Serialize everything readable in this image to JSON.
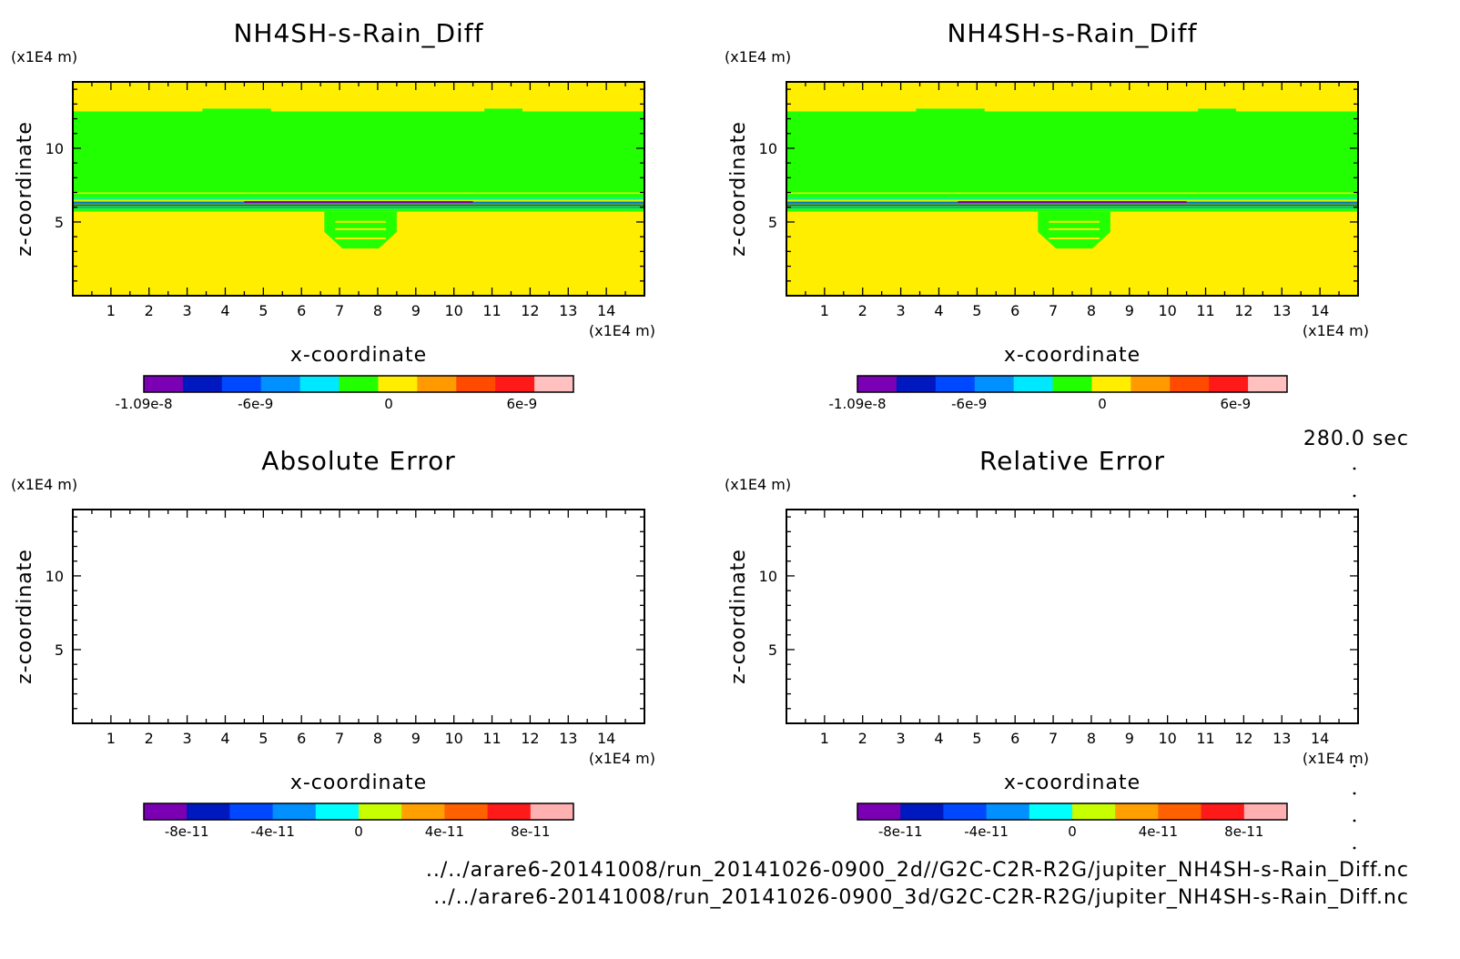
{
  "timestamp": "280.0 sec",
  "file_paths": [
    "../../arare6-20141008/run_20141026-0900_2d//G2C-C2R-R2G/jupiter_NH4SH-s-Rain_Diff.nc",
    "../../arare6-20141008/run_20141026-0900_3d/G2C-C2R-R2G/jupiter_NH4SH-s-Rain_Diff.nc"
  ],
  "colors": {
    "background_field": "#ffee00",
    "cloud_band": "#22ff00",
    "frame": "#000000"
  },
  "chart_data": [
    {
      "type": "heatmap",
      "title": "NH4SH-s-Rain_Diff",
      "xlabel": "x-coordinate",
      "ylabel": "z-coordinate",
      "x_unit": "(x1E4 m)",
      "y_unit": "(x1E4 m)",
      "xlim": [
        0,
        15
      ],
      "ylim": [
        0,
        14.5
      ],
      "x_ticks": [
        1,
        2,
        3,
        4,
        5,
        6,
        7,
        8,
        9,
        10,
        11,
        12,
        13,
        14
      ],
      "y_ticks": [
        5,
        10
      ],
      "field_regions": [
        {
          "name": "upper background",
          "zmin": 12.5,
          "zmax": 14.5,
          "value": 2e-09
        },
        {
          "name": "cloud layer",
          "zmin": 7.0,
          "zmax": 12.5,
          "value": -1e-09
        },
        {
          "name": "transition layer",
          "zmin": 5.7,
          "zmax": 7.0,
          "value": -6e-09
        },
        {
          "name": "lower background",
          "zmin": 0,
          "zmax": 5.7,
          "value": 2e-09
        }
      ],
      "colorbar": {
        "ticks": [
          "-1.09e-8",
          "-6e-9",
          "0",
          "6e-9"
        ],
        "colors": [
          "#7b00b4",
          "#0018c0",
          "#0048ff",
          "#0090ff",
          "#00e8ff",
          "#22ff00",
          "#ffee00",
          "#ff9a00",
          "#ff4a00",
          "#ff1a1a",
          "#ffc0c0"
        ]
      }
    },
    {
      "type": "heatmap",
      "title": "NH4SH-s-Rain_Diff",
      "xlabel": "x-coordinate",
      "ylabel": "z-coordinate",
      "x_unit": "(x1E4 m)",
      "y_unit": "(x1E4 m)",
      "xlim": [
        0,
        15
      ],
      "ylim": [
        0,
        14.5
      ],
      "x_ticks": [
        1,
        2,
        3,
        4,
        5,
        6,
        7,
        8,
        9,
        10,
        11,
        12,
        13,
        14
      ],
      "y_ticks": [
        5,
        10
      ],
      "field_regions": [
        {
          "name": "upper background",
          "zmin": 12.5,
          "zmax": 14.5,
          "value": 2e-09
        },
        {
          "name": "cloud layer",
          "zmin": 7.0,
          "zmax": 12.5,
          "value": -1e-09
        },
        {
          "name": "transition layer",
          "zmin": 5.7,
          "zmax": 7.0,
          "value": -6e-09
        },
        {
          "name": "lower background",
          "zmin": 0,
          "zmax": 5.7,
          "value": 2e-09
        }
      ],
      "colorbar": {
        "ticks": [
          "-1.09e-8",
          "-6e-9",
          "0",
          "6e-9"
        ],
        "colors": [
          "#7b00b4",
          "#0018c0",
          "#0048ff",
          "#0090ff",
          "#00e8ff",
          "#22ff00",
          "#ffee00",
          "#ff9a00",
          "#ff4a00",
          "#ff1a1a",
          "#ffc0c0"
        ]
      }
    },
    {
      "type": "heatmap",
      "title": "Absolute Error",
      "xlabel": "x-coordinate",
      "ylabel": "z-coordinate",
      "x_unit": "(x1E4 m)",
      "y_unit": "(x1E4 m)",
      "xlim": [
        0,
        15
      ],
      "ylim": [
        0,
        14.5
      ],
      "x_ticks": [
        1,
        2,
        3,
        4,
        5,
        6,
        7,
        8,
        9,
        10,
        11,
        12,
        13,
        14
      ],
      "y_ticks": [
        5,
        10
      ],
      "field_regions": [],
      "colorbar": {
        "ticks": [
          "-8e-11",
          "-4e-11",
          "0",
          "4e-11",
          "8e-11"
        ],
        "colors": [
          "#7b00b4",
          "#0018c0",
          "#0048ff",
          "#0090ff",
          "#00ffff",
          "#c8ff00",
          "#ffa000",
          "#ff6000",
          "#ff1a1a",
          "#ffb0b0"
        ]
      }
    },
    {
      "type": "heatmap",
      "title": "Relative Error",
      "xlabel": "x-coordinate",
      "ylabel": "z-coordinate",
      "x_unit": "(x1E4 m)",
      "y_unit": "(x1E4 m)",
      "xlim": [
        0,
        15
      ],
      "ylim": [
        0,
        14.5
      ],
      "x_ticks": [
        1,
        2,
        3,
        4,
        5,
        6,
        7,
        8,
        9,
        10,
        11,
        12,
        13,
        14
      ],
      "y_ticks": [
        5,
        10
      ],
      "field_regions": [],
      "colorbar": {
        "ticks": [
          "-8e-11",
          "-4e-11",
          "0",
          "4e-11",
          "8e-11"
        ],
        "colors": [
          "#7b00b4",
          "#0018c0",
          "#0048ff",
          "#0090ff",
          "#00ffff",
          "#c8ff00",
          "#ffa000",
          "#ff6000",
          "#ff1a1a",
          "#ffb0b0"
        ]
      }
    }
  ]
}
